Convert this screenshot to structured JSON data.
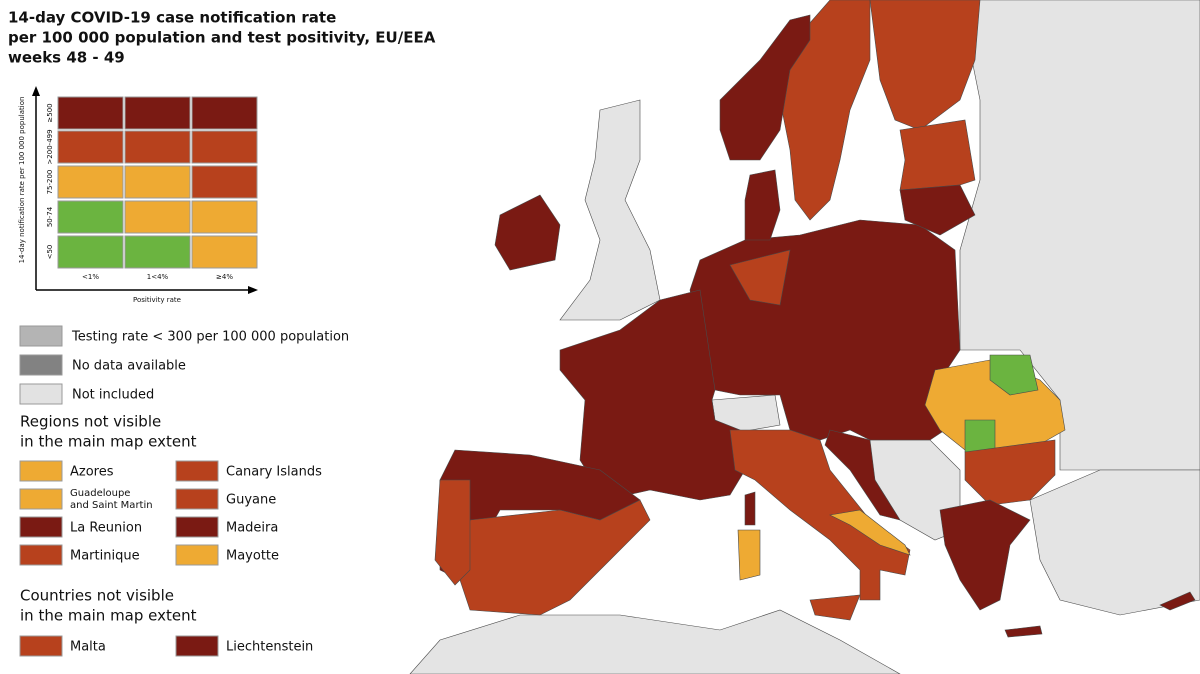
{
  "title": [
    "14-day COVID-19 case notification rate",
    "per 100 000 population and test positivity, EU/EEA",
    "weeks 48 - 49"
  ],
  "matrix": {
    "y_label": "14-day notification rate per 100 000 population",
    "x_label": "Positivity rate",
    "rows": [
      "≥500",
      ">200-499",
      "75-200",
      "50-74",
      "<50"
    ],
    "columns": [
      "<1%",
      "1<4%",
      "≥4%"
    ],
    "cells": [
      [
        "#7a1a13",
        "#7a1a13",
        "#7a1a13"
      ],
      [
        "#b7411d",
        "#b7411d",
        "#b7411d"
      ],
      [
        "#eeaa33",
        "#eeaa33",
        "#b7411d"
      ],
      [
        "#6bb440",
        "#eeaa33",
        "#eeaa33"
      ],
      [
        "#6bb440",
        "#6bb440",
        "#eeaa33"
      ]
    ]
  },
  "testing_legend": [
    {
      "label": "Testing rate < 300 per 100 000 population",
      "color": "#b4b4b4"
    },
    {
      "label": "No data available",
      "color": "#828282"
    },
    {
      "label": "Not included",
      "color": "#e2e2e2"
    }
  ],
  "regions": {
    "heading": [
      "Regions not visible",
      "in the main map extent"
    ],
    "items": [
      {
        "label": "Azores",
        "color": "#eeaa33"
      },
      {
        "label": "Canary Islands",
        "color": "#b7411d"
      },
      {
        "label": [
          "Guadeloupe",
          "and Saint Martin"
        ],
        "color": "#eeaa33"
      },
      {
        "label": "Guyane",
        "color": "#b7411d"
      },
      {
        "label": "La Reunion",
        "color": "#7a1a13"
      },
      {
        "label": "Madeira",
        "color": "#7a1a13"
      },
      {
        "label": "Martinique",
        "color": "#b7411d"
      },
      {
        "label": "Mayotte",
        "color": "#eeaa33"
      }
    ]
  },
  "countries": {
    "heading": [
      "Countries not visible",
      "in the main map extent"
    ],
    "items": [
      {
        "label": "Malta",
        "color": "#b7411d"
      },
      {
        "label": "Liechtenstein",
        "color": "#7a1a13"
      }
    ]
  }
}
